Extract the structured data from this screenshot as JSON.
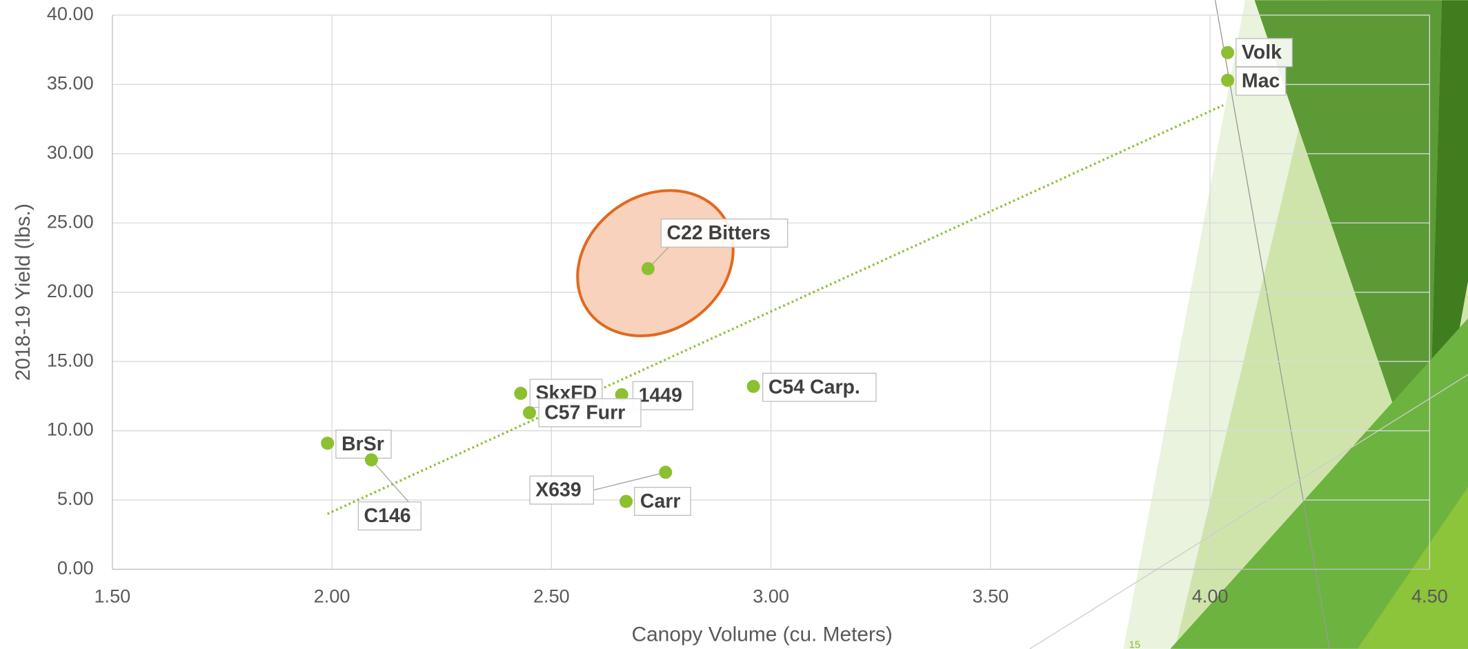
{
  "chart_data": {
    "type": "scatter",
    "x_label": "Canopy Volume (cu. Meters)",
    "y_label": "2018-19 Yield (lbs.)",
    "xlim": [
      1.5,
      4.5
    ],
    "ylim": [
      0,
      40
    ],
    "xticks": [
      {
        "value": 1.5,
        "label": "1.50"
      },
      {
        "value": 2,
        "label": "2.00"
      },
      {
        "value": 2.5,
        "label": "2.50"
      },
      {
        "value": 3,
        "label": "3.00"
      },
      {
        "value": 3.5,
        "label": "3.50"
      },
      {
        "value": 4,
        "label": "4.00"
      },
      {
        "value": 4.5,
        "label": "4.50"
      }
    ],
    "yticks": [
      {
        "value": 0,
        "label": "0.00"
      },
      {
        "value": 5,
        "label": "5.00"
      },
      {
        "value": 10,
        "label": "10.00"
      },
      {
        "value": 15,
        "label": "15.00"
      },
      {
        "value": 20,
        "label": "20.00"
      },
      {
        "value": 25,
        "label": "25.00"
      },
      {
        "value": 30,
        "label": "30.00"
      },
      {
        "value": 35,
        "label": "35.00"
      },
      {
        "value": 40,
        "label": "40.00"
      }
    ],
    "grid": true,
    "color": "#8cc031",
    "series": [
      {
        "labels": [
          "Volk",
          "Mac",
          "C22 Bitters",
          "SkxFD",
          "1449",
          "C57 Furr",
          "C54 Carp.",
          "BrSr",
          "C146",
          "X639",
          "Carr"
        ],
        "x": [
          4.04,
          4.04,
          2.72,
          2.43,
          2.66,
          2.45,
          2.96,
          1.99,
          2.09,
          2.76,
          2.67
        ],
        "values": [
          37.3,
          35.3,
          21.7,
          12.7,
          12.6,
          11.3,
          13.2,
          9.1,
          7.9,
          7.0,
          4.9
        ]
      }
    ],
    "trendline": {
      "x": [
        1.99,
        4.03
      ],
      "values": [
        4.0,
        33.5
      ],
      "color": "#8cc031"
    },
    "slide_number": "15"
  }
}
